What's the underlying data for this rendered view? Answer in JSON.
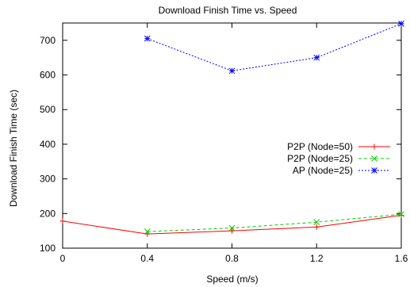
{
  "chart_data": {
    "type": "line",
    "title": "Download Finish Time vs. Speed",
    "xlabel": "Speed (m/s)",
    "ylabel": "Download Finish Time (sec)",
    "xlim": [
      0,
      1.6
    ],
    "ylim": [
      100,
      750
    ],
    "xticks": [
      0,
      0.4,
      0.8,
      1.2,
      1.6
    ],
    "xtick_labels": [
      "0",
      "0.4",
      "0.8",
      "1.2",
      "1.6"
    ],
    "yticks": [
      100,
      200,
      300,
      400,
      500,
      600,
      700
    ],
    "ytick_labels": [
      "100",
      "200",
      "300",
      "400",
      "500",
      "600",
      "700"
    ],
    "grid": false,
    "legend_position": "right-center",
    "series": [
      {
        "name": "P2P (Node=50)",
        "color": "#ff0000",
        "dash": "solid",
        "marker": "plus",
        "x": [
          0,
          0.4,
          0.8,
          1.2,
          1.6
        ],
        "y": [
          178,
          141,
          150,
          161,
          195
        ]
      },
      {
        "name": "P2P (Node=25)",
        "color": "#00cc00",
        "dash": "dashed",
        "marker": "cross",
        "x": [
          0.4,
          0.8,
          1.2,
          1.6
        ],
        "y": [
          148,
          158,
          175,
          198
        ]
      },
      {
        "name": "AP (Node=25)",
        "color": "#0000ff",
        "dash": "dotted",
        "marker": "star",
        "x": [
          0.4,
          0.8,
          1.2,
          1.6
        ],
        "y": [
          705,
          612,
          650,
          748
        ]
      }
    ]
  }
}
